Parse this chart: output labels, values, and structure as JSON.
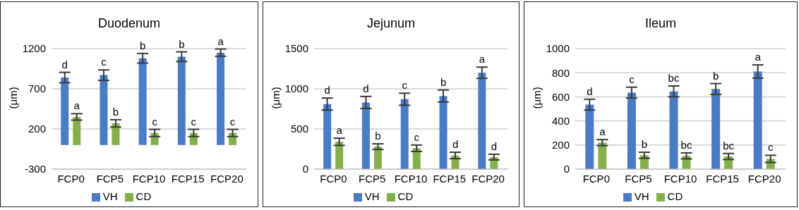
{
  "chart_data": [
    {
      "type": "bar",
      "title": "Duodenum",
      "ylabel": "(μm)",
      "categories": [
        "FCP0",
        "FCP5",
        "FCP10",
        "FCP15",
        "FCP20"
      ],
      "ylim": [
        -300,
        1200
      ],
      "yticks": [
        -300,
        200,
        700,
        1200
      ],
      "grid": "y",
      "legend": "bottom",
      "series": [
        {
          "name": "VH",
          "color": "#4a7bc6",
          "values": [
            840,
            870,
            1080,
            1100,
            1150
          ],
          "errors": [
            65,
            65,
            60,
            60,
            45
          ],
          "value_labels": [
            "d",
            "c",
            "b",
            "b",
            "a"
          ]
        },
        {
          "name": "CD",
          "color": "#84b04c",
          "values": [
            350,
            270,
            150,
            150,
            150
          ],
          "errors": [
            40,
            45,
            45,
            45,
            45
          ],
          "value_labels": [
            "a",
            "b",
            "c",
            "c",
            "c"
          ]
        }
      ]
    },
    {
      "type": "bar",
      "title": "Jejunum",
      "ylabel": "(μm)",
      "categories": [
        "FCP0",
        "FCP5",
        "FCP10",
        "FCP15",
        "FCP20"
      ],
      "ylim": [
        0,
        1500
      ],
      "yticks": [
        0,
        500,
        1000,
        1500
      ],
      "grid": "y",
      "legend": "bottom",
      "series": [
        {
          "name": "VH",
          "color": "#4a7bc6",
          "values": [
            810,
            830,
            870,
            910,
            1200
          ],
          "errors": [
            75,
            75,
            75,
            75,
            70
          ],
          "value_labels": [
            "d",
            "d",
            "c",
            "b",
            "a"
          ]
        },
        {
          "name": "CD",
          "color": "#84b04c",
          "values": [
            340,
            280,
            260,
            170,
            150
          ],
          "errors": [
            45,
            35,
            40,
            40,
            35
          ],
          "value_labels": [
            "a",
            "b",
            "c",
            "d",
            "d"
          ]
        }
      ]
    },
    {
      "type": "bar",
      "title": "Ileum",
      "ylabel": "(μm)",
      "categories": [
        "FCP0",
        "FCP5",
        "FCP10",
        "FCP15",
        "FCP20"
      ],
      "ylim": [
        0,
        1000
      ],
      "yticks": [
        0,
        200,
        400,
        600,
        800,
        1000
      ],
      "grid": "y",
      "legend": "bottom",
      "series": [
        {
          "name": "VH",
          "color": "#4a7bc6",
          "values": [
            535,
            635,
            645,
            665,
            810
          ],
          "errors": [
            45,
            45,
            45,
            45,
            55
          ],
          "value_labels": [
            "d",
            "c",
            "bc",
            "b",
            "a"
          ]
        },
        {
          "name": "CD",
          "color": "#84b04c",
          "values": [
            220,
            115,
            110,
            105,
            85
          ],
          "errors": [
            25,
            25,
            25,
            25,
            30
          ],
          "value_labels": [
            "a",
            "b",
            "bc",
            "bc",
            "c"
          ]
        }
      ]
    }
  ]
}
